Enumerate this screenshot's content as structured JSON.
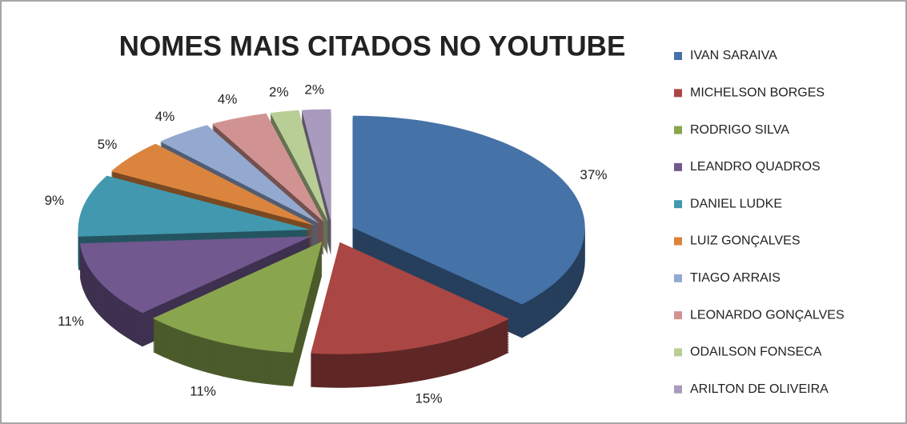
{
  "chart_data": {
    "type": "pie",
    "title": "NOMES MAIS CITADOS NO YOUTUBE",
    "categories": [
      "IVAN SARAIVA",
      "MICHELSON BORGES",
      "RODRIGO SILVA",
      "LEANDRO QUADROS",
      "DANIEL LUDKE",
      "LUIZ GONÇALVES",
      "TIAGO ARRAIS",
      "LEONARDO GONÇALVES",
      "ODAILSON FONSECA",
      "ARILTON DE OLIVEIRA"
    ],
    "values": [
      37,
      15,
      11,
      11,
      9,
      5,
      4,
      4,
      2,
      2
    ],
    "value_labels": [
      "37%",
      "15%",
      "11%",
      "11%",
      "9%",
      "5%",
      "4%",
      "4%",
      "2%",
      "2%"
    ],
    "colors": [
      "#4572a7",
      "#aa4643",
      "#89a54e",
      "#71588f",
      "#4198af",
      "#db843d",
      "#93a9cf",
      "#d19392",
      "#b9cd96",
      "#a99bbd"
    ],
    "legend": "right"
  }
}
